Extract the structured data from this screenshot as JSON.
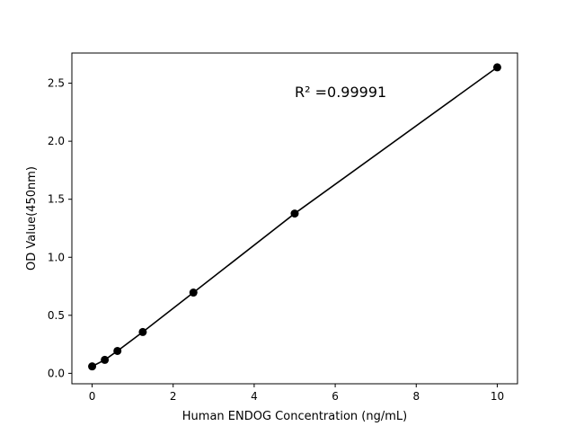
{
  "chart_data": {
    "type": "line",
    "title": "",
    "xlabel": "Human ENDOG Concentration (ng/mL)",
    "ylabel": "OD Value(450nm)",
    "xlim": [
      -0.5,
      10.5
    ],
    "ylim": [
      -0.09,
      2.76
    ],
    "xticks": [
      0,
      2,
      4,
      6,
      8,
      10
    ],
    "yticks": [
      "0.0",
      "0.5",
      "1.0",
      "1.5",
      "2.0",
      "2.5"
    ],
    "grid": false,
    "annotation": "R² =0.99991",
    "series": [
      {
        "x": [
          0,
          0.3125,
          0.625,
          1.25,
          2.5,
          5,
          10
        ],
        "y": [
          0.06,
          0.116,
          0.193,
          0.356,
          0.696,
          1.377,
          2.637
        ],
        "color": "#000000",
        "marker": "circle"
      }
    ]
  }
}
